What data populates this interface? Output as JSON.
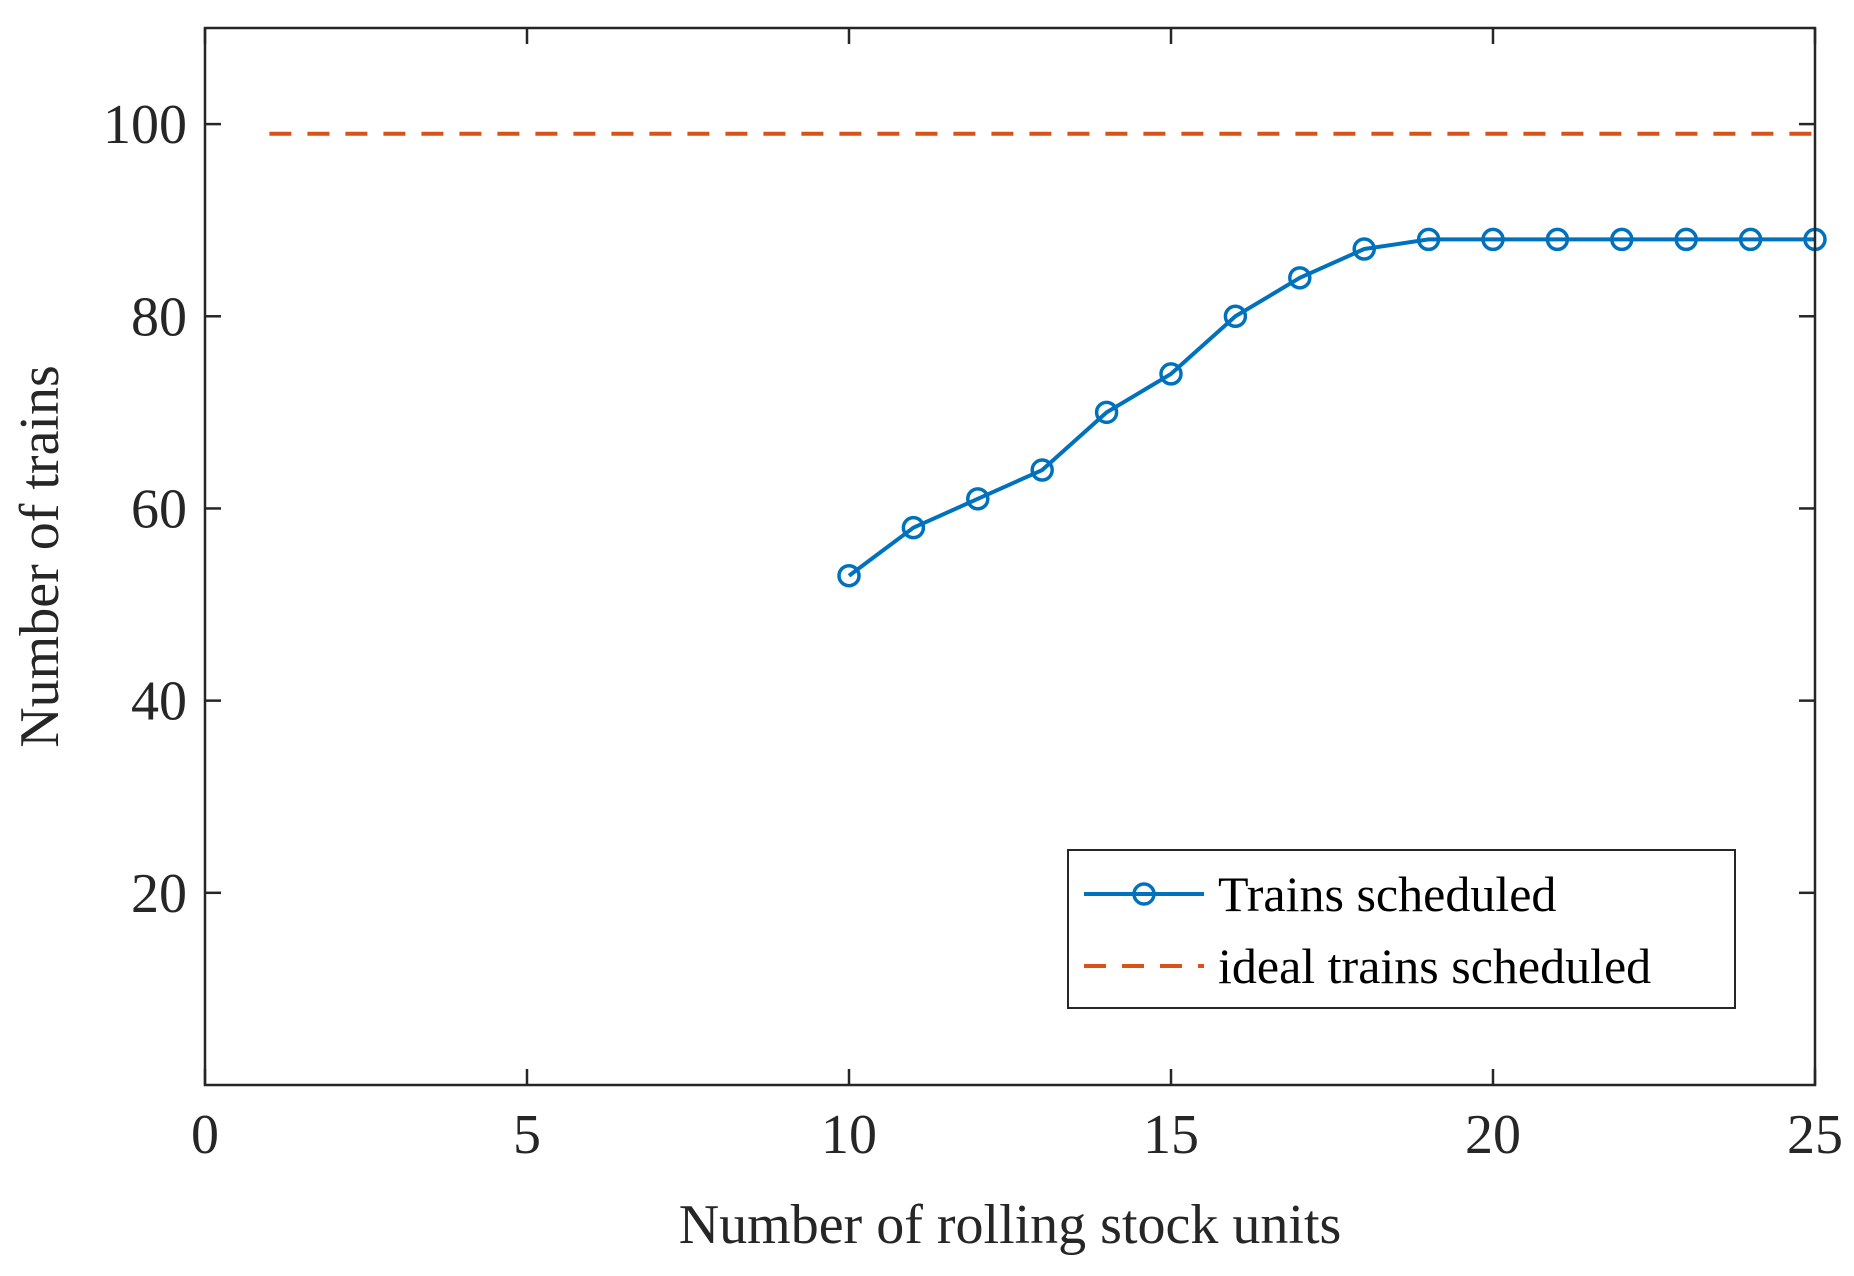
{
  "chart_data": {
    "type": "line",
    "title": "",
    "xlabel": "Number of rolling stock units",
    "ylabel": "Number of trains",
    "xlim": [
      0,
      25
    ],
    "ylim": [
      0,
      110
    ],
    "x_ticks": [
      0,
      5,
      10,
      15,
      20,
      25
    ],
    "y_ticks": [
      20,
      40,
      60,
      80,
      100
    ],
    "x_tick_labels": [
      "0",
      "5",
      "10",
      "15",
      "20",
      "25"
    ],
    "y_tick_labels": [
      "20",
      "40",
      "60",
      "80",
      "100"
    ],
    "grid": false,
    "legend_position": "bottom-right",
    "series": [
      {
        "name": "Trains scheduled",
        "style": "solid",
        "marker": "circle",
        "color": "#0072BD",
        "x": [
          10,
          11,
          12,
          13,
          14,
          15,
          16,
          17,
          18,
          19,
          20,
          21,
          22,
          23,
          24,
          25
        ],
        "y": [
          53,
          58,
          61,
          64,
          70,
          74,
          80,
          84,
          87,
          88,
          88,
          88,
          88,
          88,
          88,
          88
        ]
      },
      {
        "name": "ideal trains scheduled",
        "style": "dashed",
        "marker": "none",
        "color": "#D95319",
        "x": [
          1,
          25
        ],
        "y": [
          99,
          99
        ]
      }
    ]
  }
}
